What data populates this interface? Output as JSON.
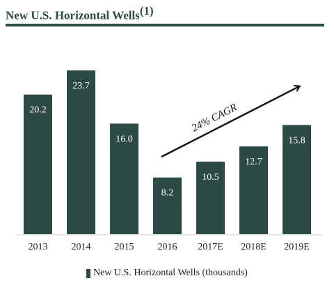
{
  "title": "New U.S. Horizontal Wells",
  "title_note": "(1)",
  "annotation": "24% CAGR",
  "colors": {
    "bar": "#2d4a47",
    "title": "#2d4a47",
    "label": "#ffffff",
    "text": "#222222"
  },
  "chart_data": {
    "type": "bar",
    "title": "New U.S. Horizontal Wells",
    "categories": [
      "2013",
      "2014",
      "2015",
      "2016",
      "2017E",
      "2018E",
      "2019E"
    ],
    "series": [
      {
        "name": "New U.S. Horizontal Wells (thousands)",
        "values": [
          20.2,
          23.7,
          16.0,
          8.2,
          10.5,
          12.7,
          15.8
        ],
        "labels": [
          "20.2",
          "23.7",
          "16.0",
          "8.2",
          "10.5",
          "12.7",
          "15.8"
        ]
      }
    ],
    "xlabel": "",
    "ylabel": "",
    "ylim": [
      0,
      23.7
    ],
    "grid": false,
    "legend": "bottom"
  }
}
